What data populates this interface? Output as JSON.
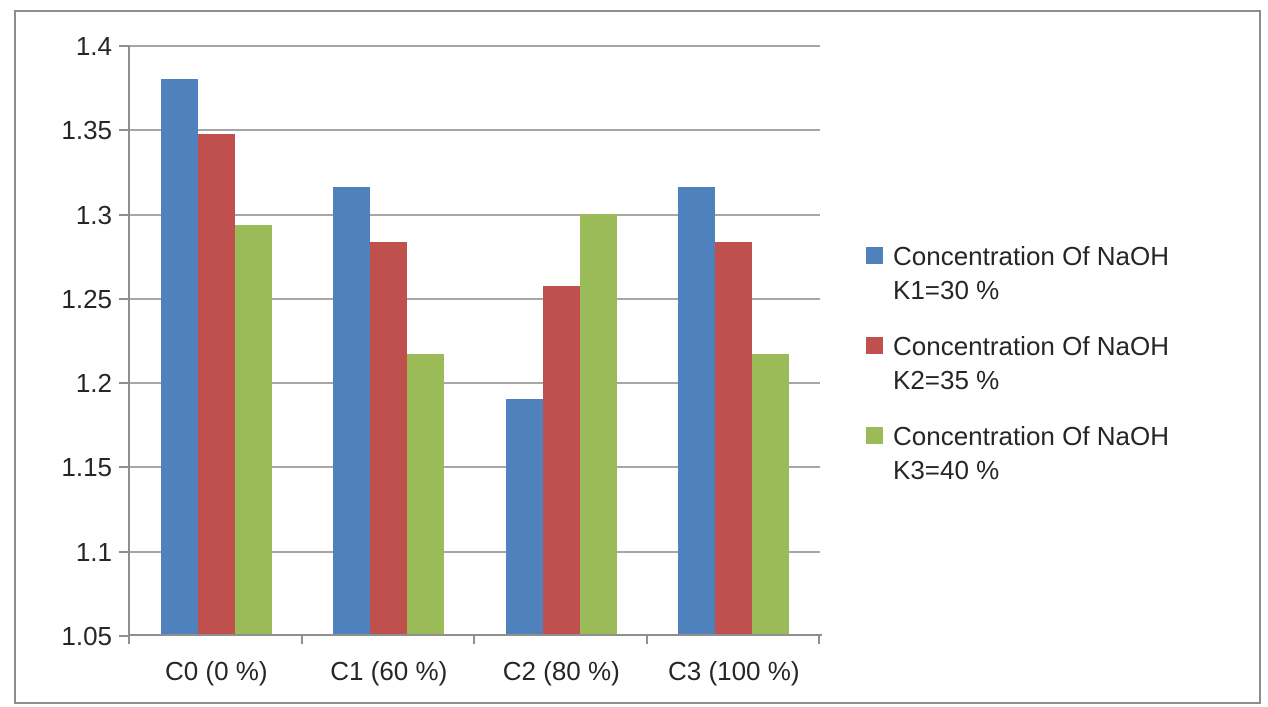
{
  "chart_data": {
    "type": "bar",
    "title": "",
    "xlabel": "",
    "ylabel": "",
    "categories": [
      "C0 (0 %)",
      "C1 (60 %)",
      "C2 (80 %)",
      "C3 (100 %)"
    ],
    "series": [
      {
        "name": "Concentration Of NaOH K1=30 %",
        "label_lines": [
          "Concentration Of NaOH",
          "K1=30 %"
        ],
        "color": "#4F81BD",
        "values": [
          1.38,
          1.316,
          1.19,
          1.316
        ]
      },
      {
        "name": "Concentration Of NaOH K2=35 %",
        "label_lines": [
          "Concentration Of NaOH",
          "K2=35 %"
        ],
        "color": "#C0504D",
        "values": [
          1.347,
          1.283,
          1.257,
          1.283
        ]
      },
      {
        "name": "Concentration Of NaOH K3=40 %",
        "label_lines": [
          "Concentration Of NaOH",
          "K3=40 %"
        ],
        "color": "#9BBB59",
        "values": [
          1.293,
          1.217,
          1.3,
          1.217
        ]
      }
    ],
    "y_axis": {
      "min": 1.05,
      "max": 1.4,
      "step": 0.05,
      "tick_labels": [
        "1.4",
        "1.35",
        "1.3",
        "1.25",
        "1.2",
        "1.15",
        "1.1",
        "1.05"
      ]
    },
    "grid": true,
    "legend_position": "right"
  },
  "colors": {
    "gridline": "#A6A6A6",
    "axis": "#8F8F8F",
    "frame": "#8D8D8D",
    "text": "#262626",
    "background": "#FFFFFF"
  }
}
